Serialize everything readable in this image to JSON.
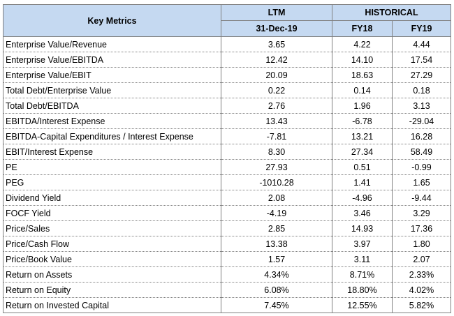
{
  "header": {
    "key_metrics": "Key Metrics",
    "ltm": "LTM",
    "historical": "HISTORICAL",
    "ltm_date": "31-Dec-19",
    "fy18": "FY18",
    "fy19": "FY19"
  },
  "colors": {
    "header_fill": "#c5d9f1",
    "grid_line": "#808080"
  },
  "rows": [
    {
      "metric": "Enterprise Value/Revenue",
      "ltm": "3.65",
      "fy18": "4.22",
      "fy19": "4.44"
    },
    {
      "metric": "Enterprise Value/EBITDA",
      "ltm": "12.42",
      "fy18": "14.10",
      "fy19": "17.54"
    },
    {
      "metric": "Enterprise Value/EBIT",
      "ltm": "20.09",
      "fy18": "18.63",
      "fy19": "27.29"
    },
    {
      "metric": "Total Debt/Enterprise Value",
      "ltm": "0.22",
      "fy18": "0.14",
      "fy19": "0.18"
    },
    {
      "metric": "Total Debt/EBITDA",
      "ltm": "2.76",
      "fy18": "1.96",
      "fy19": "3.13"
    },
    {
      "metric": "EBITDA/Interest Expense",
      "ltm": "13.43",
      "fy18": "-6.78",
      "fy19": "-29.04"
    },
    {
      "metric": "EBITDA-Capital Expenditures / Interest Expense",
      "ltm": "-7.81",
      "fy18": "13.21",
      "fy19": "16.28"
    },
    {
      "metric": "EBIT/Interest Expense",
      "ltm": "8.30",
      "fy18": "27.34",
      "fy19": "58.49"
    },
    {
      "metric": "PE",
      "ltm": "27.93",
      "fy18": "0.51",
      "fy19": "-0.99"
    },
    {
      "metric": "PEG",
      "ltm": "-1010.28",
      "fy18": "1.41",
      "fy19": "1.65"
    },
    {
      "metric": "Dividend Yield",
      "ltm": "2.08",
      "fy18": "-4.96",
      "fy19": "-9.44"
    },
    {
      "metric": "FOCF Yield",
      "ltm": "-4.19",
      "fy18": "3.46",
      "fy19": "3.29"
    },
    {
      "metric": "Price/Sales",
      "ltm": "2.85",
      "fy18": "14.93",
      "fy19": "17.36"
    },
    {
      "metric": "Price/Cash Flow",
      "ltm": "13.38",
      "fy18": "3.97",
      "fy19": "1.80"
    },
    {
      "metric": "Price/Book Value",
      "ltm": "1.57",
      "fy18": "3.11",
      "fy19": "2.07"
    },
    {
      "metric": "Return on Assets",
      "ltm": "4.34%",
      "fy18": "8.71%",
      "fy19": "2.33%"
    },
    {
      "metric": "Return on Equity",
      "ltm": "6.08%",
      "fy18": "18.80%",
      "fy19": "4.02%"
    },
    {
      "metric": "Return on Invested Capital",
      "ltm": "7.45%",
      "fy18": "12.55%",
      "fy19": "5.82%"
    }
  ]
}
